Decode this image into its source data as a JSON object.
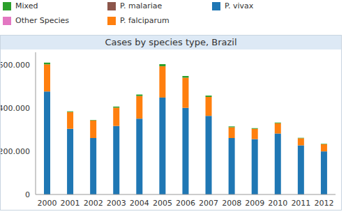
{
  "chart_data": {
    "type": "bar",
    "title": "Cases by species type, Brazil",
    "categories": [
      "2000",
      "2001",
      "2002",
      "2003",
      "2004",
      "2005",
      "2006",
      "2007",
      "2008",
      "2009",
      "2010",
      "2011",
      "2012"
    ],
    "series": [
      {
        "name": "P. vivax",
        "color": "#1f77b4",
        "values": [
          478000,
          305000,
          262000,
          318000,
          352000,
          450000,
          402000,
          365000,
          262000,
          257000,
          283000,
          228000,
          200000
        ]
      },
      {
        "name": "P. falciparum",
        "color": "#ff7f0e",
        "values": [
          126000,
          78000,
          82000,
          85000,
          105000,
          145000,
          140000,
          88000,
          50000,
          48000,
          48000,
          33000,
          33000
        ]
      },
      {
        "name": "P. malariae",
        "color": "#8c564b",
        "values": [
          0,
          0,
          0,
          0,
          0,
          0,
          0,
          0,
          0,
          0,
          0,
          0,
          0
        ]
      },
      {
        "name": "Mixed",
        "color": "#2ca02c",
        "values": [
          8000,
          3000,
          2000,
          5000,
          7000,
          10000,
          8000,
          6000,
          4000,
          3000,
          3000,
          2000,
          2000
        ]
      },
      {
        "name": "Other Species",
        "color": "#e377c2",
        "values": [
          0,
          0,
          0,
          0,
          0,
          0,
          0,
          0,
          0,
          0,
          0,
          0,
          0
        ]
      }
    ],
    "stacked": true,
    "grid": false,
    "ylim": [
      0,
      660000
    ],
    "yticks": [
      0,
      {
        "value": 200000,
        "label": "200.000"
      },
      {
        "value": 400000,
        "label": "400.000"
      },
      {
        "value": 600000,
        "label": "600.000"
      }
    ]
  }
}
